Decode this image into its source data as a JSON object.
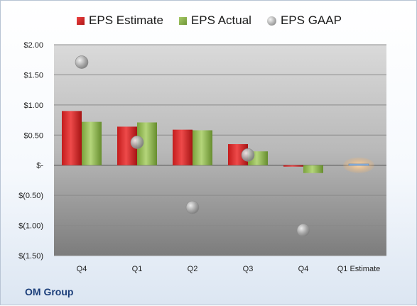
{
  "footer": {
    "company": "OM Group"
  },
  "colors": {
    "estimate": "#d42a2a",
    "actual": "#8db14e",
    "gaap": "#a0a0a0",
    "highlight": "#f5b46a",
    "footer_text": "#1c3f7a"
  },
  "chart_data": {
    "type": "bar",
    "categories": [
      "Q4",
      "Q1",
      "Q2",
      "Q3",
      "Q4",
      "Q1 Estimate"
    ],
    "series": [
      {
        "name": "EPS Estimate",
        "values": [
          0.9,
          0.64,
          0.59,
          0.35,
          -0.02,
          0.02
        ]
      },
      {
        "name": "EPS Actual",
        "values": [
          0.72,
          0.71,
          0.58,
          0.23,
          -0.13,
          null
        ]
      },
      {
        "name": "EPS GAAP",
        "values": [
          1.71,
          0.38,
          -0.7,
          0.17,
          -1.08,
          null
        ]
      }
    ],
    "series_style": [
      "bar",
      "bar",
      "marker"
    ],
    "y_tick_labels": [
      "$2.00",
      "$1.50",
      "$1.00",
      "$0.50",
      "$-",
      "$(0.50)",
      "$(1.00)",
      "$(1.50)"
    ],
    "y_ticks": [
      2.0,
      1.5,
      1.0,
      0.5,
      0,
      -0.5,
      -1.0,
      -1.5
    ],
    "ylim": [
      -1.5,
      2.0
    ],
    "grid": true,
    "legend_position": "top",
    "highlighted_category": "Q1 Estimate"
  }
}
